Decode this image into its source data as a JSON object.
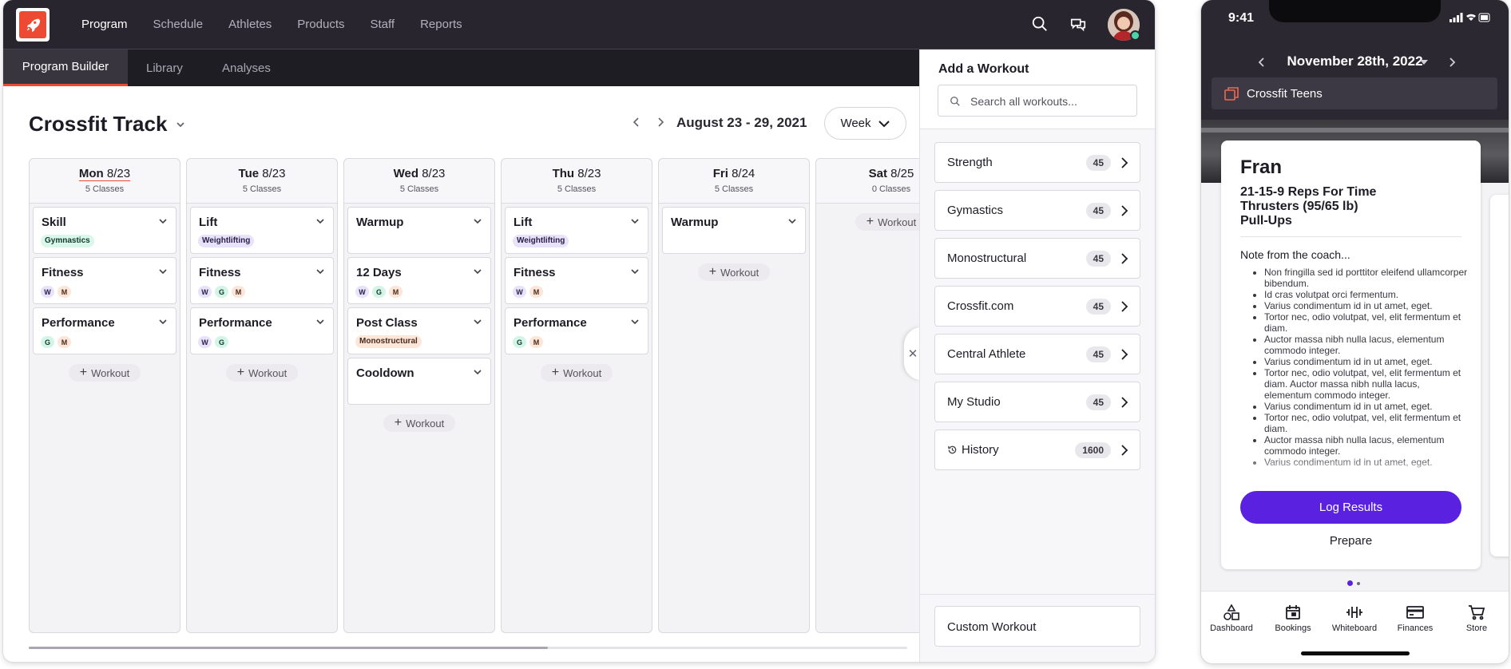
{
  "nav": {
    "links": [
      "Program",
      "Schedule",
      "Athletes",
      "Products",
      "Staff",
      "Reports"
    ],
    "active": "Program"
  },
  "subnav": {
    "tabs": [
      "Program Builder",
      "Library",
      "Analyses"
    ],
    "active": "Program Builder"
  },
  "track": {
    "title": "Crossfit Track",
    "date_range": "August 23 - 29, 2021",
    "view": "Week"
  },
  "days": [
    {
      "dow": "Mon",
      "date": "8/23",
      "classes": "5 Classes",
      "today": true,
      "workouts": [
        {
          "title": "Skill",
          "tag": "Gymnastics",
          "tag_kind": "gym"
        },
        {
          "title": "Fitness",
          "dots": [
            "W",
            "M"
          ]
        },
        {
          "title": "Performance",
          "dots": [
            "G",
            "M"
          ]
        }
      ]
    },
    {
      "dow": "Tue",
      "date": "8/23",
      "classes": "5 Classes",
      "workouts": [
        {
          "title": "Lift",
          "tag": "Weightlifting",
          "tag_kind": "wl"
        },
        {
          "title": "Fitness",
          "dots": [
            "W",
            "G",
            "M"
          ]
        },
        {
          "title": "Performance",
          "dots": [
            "W",
            "G"
          ]
        }
      ]
    },
    {
      "dow": "Wed",
      "date": "8/23",
      "classes": "5 Classes",
      "workouts": [
        {
          "title": "Warmup"
        },
        {
          "title": "12 Days",
          "dots": [
            "W",
            "G",
            "M"
          ]
        },
        {
          "title": "Post Class",
          "tag": "Monostructural",
          "tag_kind": "mono"
        },
        {
          "title": "Cooldown"
        }
      ]
    },
    {
      "dow": "Thu",
      "date": "8/23",
      "classes": "5 Classes",
      "workouts": [
        {
          "title": "Lift",
          "tag": "Weightlifting",
          "tag_kind": "wl"
        },
        {
          "title": "Fitness",
          "dots": [
            "W",
            "M"
          ]
        },
        {
          "title": "Performance",
          "dots": [
            "G",
            "M"
          ]
        }
      ]
    },
    {
      "dow": "Fri",
      "date": "8/24",
      "classes": "5 Classes",
      "workouts": [
        {
          "title": "Warmup"
        }
      ]
    },
    {
      "dow": "Sat",
      "date": "8/25",
      "classes": "0 Classes",
      "workouts": []
    }
  ],
  "add_workout_label": "Workout",
  "panel": {
    "title": "Add a Workout",
    "search_placeholder": "Search all workouts...",
    "categories": [
      {
        "name": "Strength",
        "count": "45"
      },
      {
        "name": "Gymastics",
        "count": "45"
      },
      {
        "name": "Monostructural",
        "count": "45"
      },
      {
        "name": "Crossfit.com",
        "count": "45"
      },
      {
        "name": "Central Athlete",
        "count": "45"
      },
      {
        "name": "My Studio",
        "count": "45"
      },
      {
        "name": "History",
        "count": "1600",
        "icon": "history-icon"
      }
    ],
    "custom": "Custom Workout"
  },
  "phone": {
    "time": "9:41",
    "date": "November 28th, 2022",
    "group": "Crossfit Teens",
    "workout": {
      "name": "Fran",
      "lines": [
        "21-15-9 Reps For Time",
        "Thrusters (95/65 lb)",
        "Pull-Ups"
      ],
      "note_title": "Note from the coach...",
      "notes": [
        "Non fringilla sed id porttitor eleifend ullamcorper bibendum.",
        "Id cras volutpat orci fermentum.",
        "Varius condimentum id in ut amet, eget.",
        "Tortor nec, odio volutpat, vel, elit fermentum et diam.",
        "Auctor massa nibh nulla lacus, elementum commodo integer.",
        "Varius condimentum id in ut amet, eget.",
        "Tortor nec, odio volutpat, vel, elit fermentum et diam. Auctor massa nibh nulla lacus, elementum commodo integer.",
        "Varius condimentum id in ut amet, eget.",
        "Tortor nec, odio volutpat, vel, elit fermentum et diam.",
        "Auctor massa nibh nulla lacus, elementum commodo integer.",
        "Varius condimentum id in ut amet, eget."
      ],
      "log_button": "Log Results",
      "prepare": "Prepare"
    },
    "tabs": [
      "Dashboard",
      "Bookings",
      "Whiteboard",
      "Finances",
      "Store"
    ]
  },
  "colors": {
    "accent": "#ec4a33",
    "brand_purple": "#5a22e0",
    "nav_bg": "#28252e"
  }
}
